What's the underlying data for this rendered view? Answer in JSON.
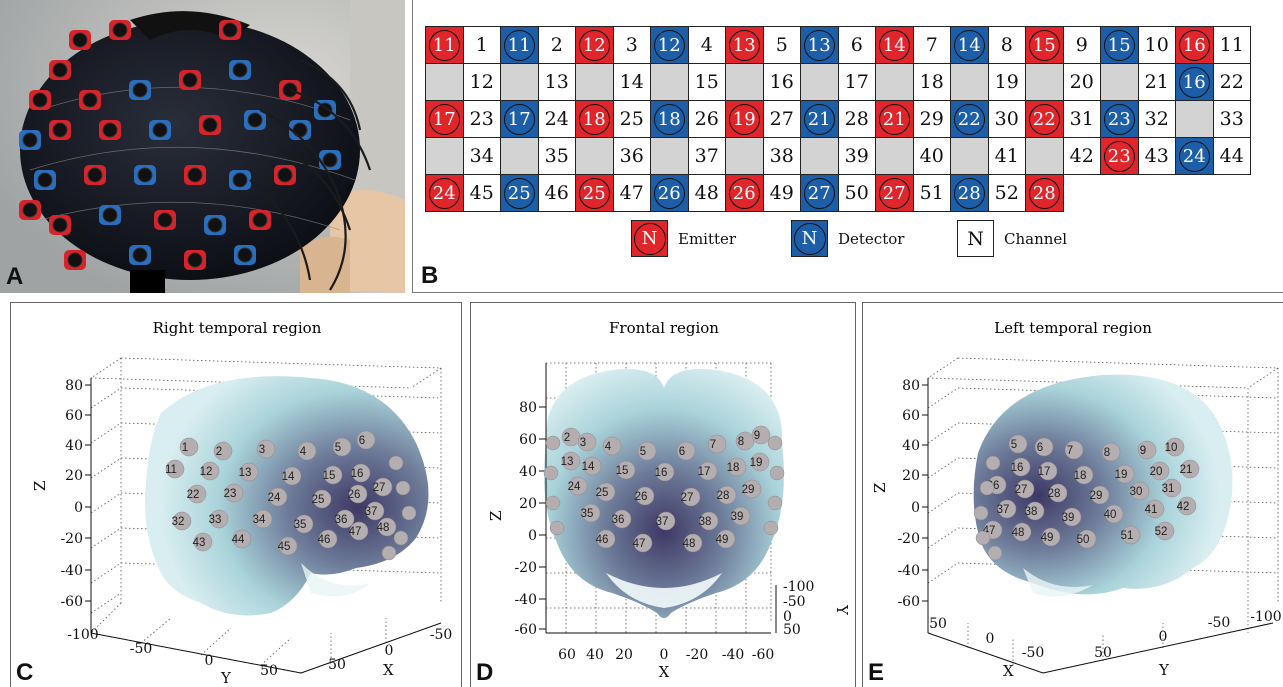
{
  "panels": {
    "a": {
      "letter": "A"
    },
    "b": {
      "letter": "B"
    },
    "c": {
      "letter": "C",
      "title": "Right temporal region"
    },
    "d": {
      "letter": "D",
      "title": "Frontal region"
    },
    "e": {
      "letter": "E",
      "title": "Left temporal region"
    }
  },
  "colors": {
    "emitter": "#e1262b",
    "detector": "#1c5fa8",
    "empty": "#d3d3d3",
    "brain": "#a9d3da",
    "brain_shadow": "#4f4a6e"
  },
  "grid": {
    "rows": [
      [
        [
          "E",
          "11"
        ],
        [
          "C",
          "1"
        ],
        [
          "D",
          "11"
        ],
        [
          "C",
          "2"
        ],
        [
          "E",
          "12"
        ],
        [
          "C",
          "3"
        ],
        [
          "D",
          "12"
        ],
        [
          "C",
          "4"
        ],
        [
          "E",
          "13"
        ],
        [
          "C",
          "5"
        ],
        [
          "D",
          "13"
        ],
        [
          "C",
          "6"
        ],
        [
          "E",
          "14"
        ],
        [
          "C",
          "7"
        ],
        [
          "D",
          "14"
        ],
        [
          "C",
          "8"
        ],
        [
          "E",
          "15"
        ],
        [
          "C",
          "9"
        ],
        [
          "D",
          "15"
        ],
        [
          "C",
          "10"
        ],
        [
          "E",
          "16"
        ]
      ],
      [
        [
          "C",
          "11"
        ],
        [
          "X",
          ""
        ],
        [
          "C",
          "12"
        ],
        [
          "X",
          ""
        ],
        [
          "C",
          "13"
        ],
        [
          "X",
          ""
        ],
        [
          "C",
          "14"
        ],
        [
          "X",
          ""
        ],
        [
          "C",
          "15"
        ],
        [
          "X",
          ""
        ],
        [
          "C",
          "16"
        ],
        [
          "X",
          ""
        ],
        [
          "C",
          "17"
        ],
        [
          "X",
          ""
        ],
        [
          "C",
          "18"
        ],
        [
          "X",
          ""
        ],
        [
          "C",
          "19"
        ],
        [
          "X",
          ""
        ],
        [
          "C",
          "20"
        ],
        [
          "X",
          ""
        ],
        [
          "C",
          "21"
        ]
      ],
      [
        [
          "D",
          "16"
        ],
        [
          "C",
          "22"
        ],
        [
          "E",
          "17"
        ],
        [
          "C",
          "23"
        ],
        [
          "D",
          "17"
        ],
        [
          "C",
          "24"
        ],
        [
          "E",
          "18"
        ],
        [
          "C",
          "25"
        ],
        [
          "D",
          "18"
        ],
        [
          "C",
          "26"
        ],
        [
          "E",
          "19"
        ],
        [
          "C",
          "27"
        ],
        [
          "D",
          "21"
        ],
        [
          "C",
          "28"
        ],
        [
          "E",
          "21"
        ],
        [
          "C",
          "29"
        ],
        [
          "D",
          "22"
        ],
        [
          "C",
          "30"
        ],
        [
          "E",
          "22"
        ],
        [
          "C",
          "31"
        ],
        [
          "D",
          "23"
        ]
      ],
      [
        [
          "C",
          "32"
        ],
        [
          "X",
          ""
        ],
        [
          "C",
          "33"
        ],
        [
          "X",
          ""
        ],
        [
          "C",
          "34"
        ],
        [
          "X",
          ""
        ],
        [
          "C",
          "35"
        ],
        [
          "X",
          ""
        ],
        [
          "C",
          "36"
        ],
        [
          "X",
          ""
        ],
        [
          "C",
          "37"
        ],
        [
          "X",
          ""
        ],
        [
          "C",
          "38"
        ],
        [
          "X",
          ""
        ],
        [
          "C",
          "39"
        ],
        [
          "X",
          ""
        ],
        [
          "C",
          "40"
        ],
        [
          "X",
          ""
        ],
        [
          "C",
          "41"
        ],
        [
          "X",
          ""
        ],
        [
          "C",
          "42"
        ]
      ],
      [
        [
          "E",
          "23"
        ],
        [
          "C",
          "43"
        ],
        [
          "D",
          "24"
        ],
        [
          "C",
          "44"
        ],
        [
          "E",
          "24"
        ],
        [
          "C",
          "45"
        ],
        [
          "D",
          "25"
        ],
        [
          "C",
          "46"
        ],
        [
          "E",
          "25"
        ],
        [
          "C",
          "47"
        ],
        [
          "D",
          "26"
        ],
        [
          "C",
          "48"
        ],
        [
          "E",
          "26"
        ],
        [
          "C",
          "49"
        ],
        [
          "D",
          "27"
        ],
        [
          "C",
          "50"
        ],
        [
          "E",
          "27"
        ],
        [
          "C",
          "51"
        ],
        [
          "D",
          "28"
        ],
        [
          "C",
          "52"
        ],
        [
          "E",
          "28"
        ]
      ]
    ]
  },
  "legend": {
    "emitter_symbol": "N",
    "emitter_label": "Emitter",
    "detector_symbol": "N",
    "detector_label": "Detector",
    "channel_symbol": "N",
    "channel_label": "Channel"
  },
  "brain_c": {
    "z_ticks": [
      "80",
      "60",
      "40",
      "20",
      "0",
      "-20",
      "-40",
      "-60"
    ],
    "z_label": "Z",
    "y_ticks": [
      "-100",
      "-50",
      "0",
      "50"
    ],
    "y_label": "Y",
    "x_ticks": [
      "-50",
      "0",
      "50"
    ],
    "x_label": "X",
    "channels": [
      "1",
      "2",
      "3",
      "4",
      "5",
      "6",
      "11",
      "12",
      "13",
      "14",
      "15",
      "16",
      "22",
      "23",
      "24",
      "25",
      "26",
      "27",
      "32",
      "33",
      "34",
      "35",
      "36",
      "37",
      "43",
      "44",
      "45",
      "46",
      "47",
      "48"
    ]
  },
  "brain_d": {
    "z_ticks": [
      "80",
      "60",
      "40",
      "20",
      "0",
      "-20",
      "-40",
      "-60"
    ],
    "z_label": "Z",
    "x_ticks": [
      "60",
      "40",
      "20",
      "0",
      "-20",
      "-40",
      "-60"
    ],
    "x_label": "X",
    "y_ticks": [
      "-100",
      "-50",
      "0",
      "50"
    ],
    "y_label": "Y",
    "channels": [
      "2",
      "3",
      "4",
      "5",
      "6",
      "7",
      "8",
      "9",
      "13",
      "14",
      "15",
      "16",
      "17",
      "18",
      "19",
      "24",
      "25",
      "26",
      "27",
      "28",
      "29",
      "35",
      "36",
      "37",
      "38",
      "39",
      "46",
      "47",
      "48",
      "49"
    ]
  },
  "brain_e": {
    "z_ticks": [
      "80",
      "60",
      "40",
      "20",
      "0",
      "-20",
      "-40",
      "-60"
    ],
    "z_label": "Z",
    "x_ticks": [
      "50",
      "0",
      "-50"
    ],
    "x_label": "X",
    "y_ticks": [
      "50",
      "0",
      "-50",
      "-100"
    ],
    "y_label": "Y",
    "channels": [
      "5",
      "6",
      "7",
      "8",
      "9",
      "10",
      "16",
      "17",
      "18",
      "19",
      "20",
      "21",
      "26",
      "27",
      "28",
      "29",
      "30",
      "31",
      "37",
      "38",
      "39",
      "40",
      "41",
      "42",
      "47",
      "48",
      "49",
      "50",
      "51",
      "52"
    ]
  }
}
